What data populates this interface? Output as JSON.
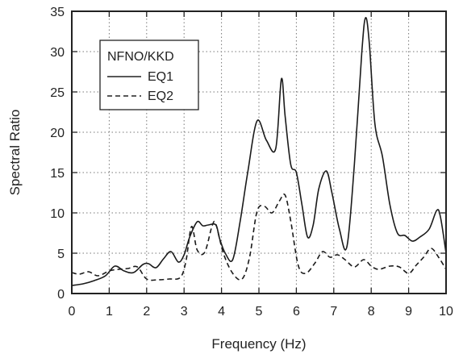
{
  "chart_data": {
    "type": "line",
    "title": "",
    "xlabel": "Frequency (Hz)",
    "ylabel": "Spectral Ratio",
    "xlim": [
      0,
      10
    ],
    "ylim": [
      0,
      35
    ],
    "xticks": [
      0,
      1,
      2,
      3,
      4,
      5,
      6,
      7,
      8,
      9,
      10
    ],
    "yticks": [
      0,
      5,
      10,
      15,
      20,
      25,
      30,
      35
    ],
    "grid": true,
    "legend_title": "NFNO/KKD",
    "legend_position": "top-left",
    "series": [
      {
        "name": "EQ1",
        "style": "solid",
        "x": [
          0,
          0.3,
          0.6,
          0.9,
          1.15,
          1.4,
          1.65,
          1.9,
          2.05,
          2.25,
          2.45,
          2.65,
          2.85,
          3.0,
          3.15,
          3.35,
          3.5,
          3.65,
          3.85,
          3.95,
          4.1,
          4.3,
          4.5,
          4.7,
          4.95,
          5.2,
          5.45,
          5.6,
          5.7,
          5.85,
          6.0,
          6.15,
          6.3,
          6.45,
          6.6,
          6.8,
          6.95,
          7.15,
          7.35,
          7.55,
          7.75,
          7.85,
          7.95,
          8.1,
          8.3,
          8.5,
          8.7,
          8.9,
          9.1,
          9.3,
          9.55,
          9.75,
          9.85,
          10.0
        ],
        "y": [
          1.0,
          1.2,
          1.6,
          2.2,
          3.4,
          2.8,
          2.6,
          3.6,
          3.7,
          3.2,
          4.3,
          5.2,
          3.9,
          4.8,
          7.0,
          8.9,
          8.4,
          8.5,
          8.5,
          6.8,
          5.0,
          4.2,
          9.0,
          15.0,
          21.4,
          19.0,
          18.0,
          26.6,
          22.0,
          16.0,
          15.0,
          11.0,
          7.0,
          8.5,
          13.0,
          15.2,
          12.5,
          8.0,
          5.8,
          16.0,
          30.0,
          34.2,
          31.0,
          21.0,
          17.0,
          11.0,
          7.5,
          7.2,
          6.5,
          7.0,
          8.0,
          10.3,
          9.5,
          5.0
        ]
      },
      {
        "name": "EQ2",
        "style": "dashed",
        "x": [
          0,
          0.2,
          0.45,
          0.7,
          1.0,
          1.25,
          1.5,
          1.75,
          2.0,
          2.3,
          2.6,
          2.9,
          3.05,
          3.2,
          3.35,
          3.55,
          3.75,
          3.85,
          4.05,
          4.3,
          4.55,
          4.75,
          4.95,
          5.15,
          5.35,
          5.55,
          5.7,
          5.85,
          6.05,
          6.25,
          6.5,
          6.7,
          6.9,
          7.1,
          7.3,
          7.55,
          7.8,
          8.0,
          8.2,
          8.5,
          8.75,
          9.0,
          9.2,
          9.4,
          9.6,
          9.8,
          10.0
        ],
        "y": [
          2.6,
          2.4,
          2.7,
          2.2,
          2.8,
          3.0,
          3.1,
          3.3,
          1.8,
          1.7,
          1.8,
          2.0,
          4.0,
          8.3,
          5.4,
          5.1,
          8.4,
          8.6,
          5.0,
          2.5,
          1.8,
          4.5,
          10.2,
          10.8,
          10.0,
          11.5,
          12.2,
          9.0,
          3.5,
          2.5,
          3.8,
          5.2,
          4.5,
          4.8,
          4.2,
          3.3,
          4.2,
          3.4,
          3.0,
          3.4,
          3.3,
          2.5,
          3.5,
          4.5,
          5.6,
          4.5,
          3.0
        ]
      }
    ]
  }
}
